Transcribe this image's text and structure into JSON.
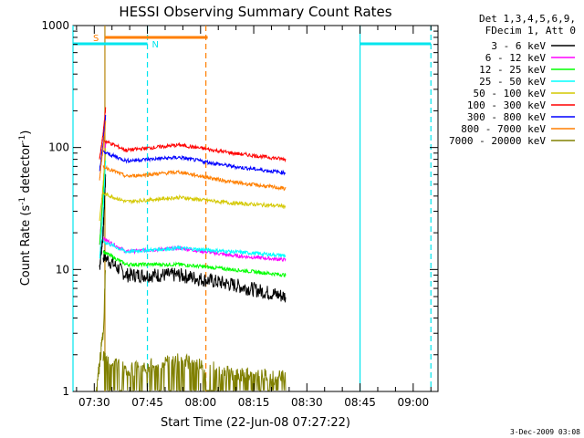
{
  "chart_data": {
    "type": "line",
    "title": "HESSI Observing Summary Count Rates",
    "xlabel": "Start Time (22-Jun-08 07:27:22)",
    "ylabel_main": "Count Rate (s",
    "ylabel_sup1": "-1",
    "ylabel_mid": " detector",
    "ylabel_sup2": "-1",
    "ylabel_end": ")",
    "y_scale": "log",
    "ylim": [
      1,
      1000
    ],
    "xlim": [
      "07:24",
      "09:07"
    ],
    "x_ticks": [
      "07:30",
      "07:45",
      "08:00",
      "08:15",
      "08:30",
      "08:45",
      "09:00"
    ],
    "y_ticks": [
      1,
      10,
      100,
      1000
    ],
    "y_tick_labels": [
      "1",
      "10",
      "100",
      "1000"
    ],
    "legend_header": [
      "Det 1,3,4,5,6,9,",
      "FDecim 1, Att 0"
    ],
    "legend_placement": "right",
    "footer_date": "3-Dec-2009 03:08",
    "flags": [
      {
        "label": "S",
        "color": "#ff7f00",
        "start": "07:33",
        "end": "08:02"
      },
      {
        "label": "N",
        "color": "#00e5ee",
        "start": "07:24",
        "end": "07:45"
      },
      {
        "label": "",
        "color": "#00e5ee",
        "start": "08:45",
        "end": "09:05"
      }
    ],
    "vertical_lines": [
      {
        "time": "07:33",
        "color": "#b8860b",
        "style": "solid"
      },
      {
        "time": "07:45",
        "color": "#00e5ee",
        "style": "dashed"
      },
      {
        "time": "08:01.5",
        "color": "#ff7f00",
        "style": "dashed"
      },
      {
        "time": "07:24",
        "color": "#00e5ee",
        "style": "solid"
      },
      {
        "time": "08:45",
        "color": "#00e5ee",
        "style": "solid"
      },
      {
        "time": "09:05",
        "color": "#00e5ee",
        "style": "dashed"
      }
    ],
    "series": [
      {
        "name": "3 - 6 keV",
        "color": "#000000",
        "seg1": [
          [
            7.5,
            10.5
          ],
          [
            8.5,
            20
          ],
          [
            9.2,
            60
          ]
        ],
        "seg2": [
          [
            8.5,
            13
          ],
          [
            15,
            9
          ],
          [
            30,
            9
          ],
          [
            45,
            7.5
          ],
          [
            60,
            6
          ]
        ]
      },
      {
        "name": "6 - 12 keV",
        "color": "#ff00ff",
        "seg1": [
          [
            7.5,
            16
          ],
          [
            8.5,
            45
          ],
          [
            9.2,
            110
          ]
        ],
        "seg2": [
          [
            8.5,
            18
          ],
          [
            15,
            14
          ],
          [
            30,
            15
          ],
          [
            45,
            13
          ],
          [
            60,
            12
          ]
        ]
      },
      {
        "name": "12 - 25 keV",
        "color": "#00ff00",
        "seg1": [
          [
            7.5,
            16
          ],
          [
            8.5,
            40
          ],
          [
            9.2,
            100
          ]
        ],
        "seg2": [
          [
            8.5,
            14
          ],
          [
            15,
            11
          ],
          [
            30,
            11
          ],
          [
            45,
            10
          ],
          [
            60,
            9
          ]
        ]
      },
      {
        "name": "25 - 50 keV",
        "color": "#00ffff",
        "seg1": [
          [
            7.5,
            12
          ],
          [
            8.5,
            30
          ],
          [
            9.2,
            80
          ]
        ],
        "seg2": [
          [
            8.5,
            17
          ],
          [
            15,
            14
          ],
          [
            30,
            15
          ],
          [
            45,
            14
          ],
          [
            60,
            13
          ]
        ]
      },
      {
        "name": "50 - 100 keV",
        "color": "#d4c800",
        "seg1": [
          [
            7.5,
            25
          ],
          [
            8.5,
            50
          ],
          [
            9.2,
            100
          ]
        ],
        "seg2": [
          [
            8.5,
            42
          ],
          [
            15,
            36
          ],
          [
            30,
            39
          ],
          [
            45,
            35
          ],
          [
            60,
            33
          ]
        ]
      },
      {
        "name": "100 - 300 keV",
        "color": "#ff0000",
        "seg1": [
          [
            7.5,
            80
          ],
          [
            8.5,
            130
          ],
          [
            9.2,
            210
          ]
        ],
        "seg2": [
          [
            8.5,
            115
          ],
          [
            15,
            95
          ],
          [
            30,
            105
          ],
          [
            45,
            90
          ],
          [
            60,
            80
          ]
        ]
      },
      {
        "name": "300 - 800 keV",
        "color": "#0000ff",
        "seg1": [
          [
            7.5,
            65
          ],
          [
            8.5,
            110
          ],
          [
            9.2,
            180
          ]
        ],
        "seg2": [
          [
            8.5,
            92
          ],
          [
            15,
            78
          ],
          [
            30,
            83
          ],
          [
            45,
            70
          ],
          [
            60,
            62
          ]
        ]
      },
      {
        "name": "800 - 7000 keV",
        "color": "#ff7f00",
        "seg1": [
          [
            7.5,
            55
          ],
          [
            8.5,
            100
          ],
          [
            9.2,
            160
          ]
        ],
        "seg2": [
          [
            8.5,
            70
          ],
          [
            15,
            58
          ],
          [
            30,
            63
          ],
          [
            45,
            52
          ],
          [
            60,
            46
          ]
        ]
      },
      {
        "name": "7000 - 20000 keV",
        "color": "#808000",
        "seg1": [
          [
            6.6,
            1
          ],
          [
            8.5,
            3
          ],
          [
            9.2,
            10
          ]
        ],
        "seg2": [
          [
            8.5,
            2
          ],
          [
            15,
            1.5
          ],
          [
            30,
            1.8
          ],
          [
            45,
            1.4
          ],
          [
            60,
            1.3
          ]
        ]
      }
    ]
  }
}
